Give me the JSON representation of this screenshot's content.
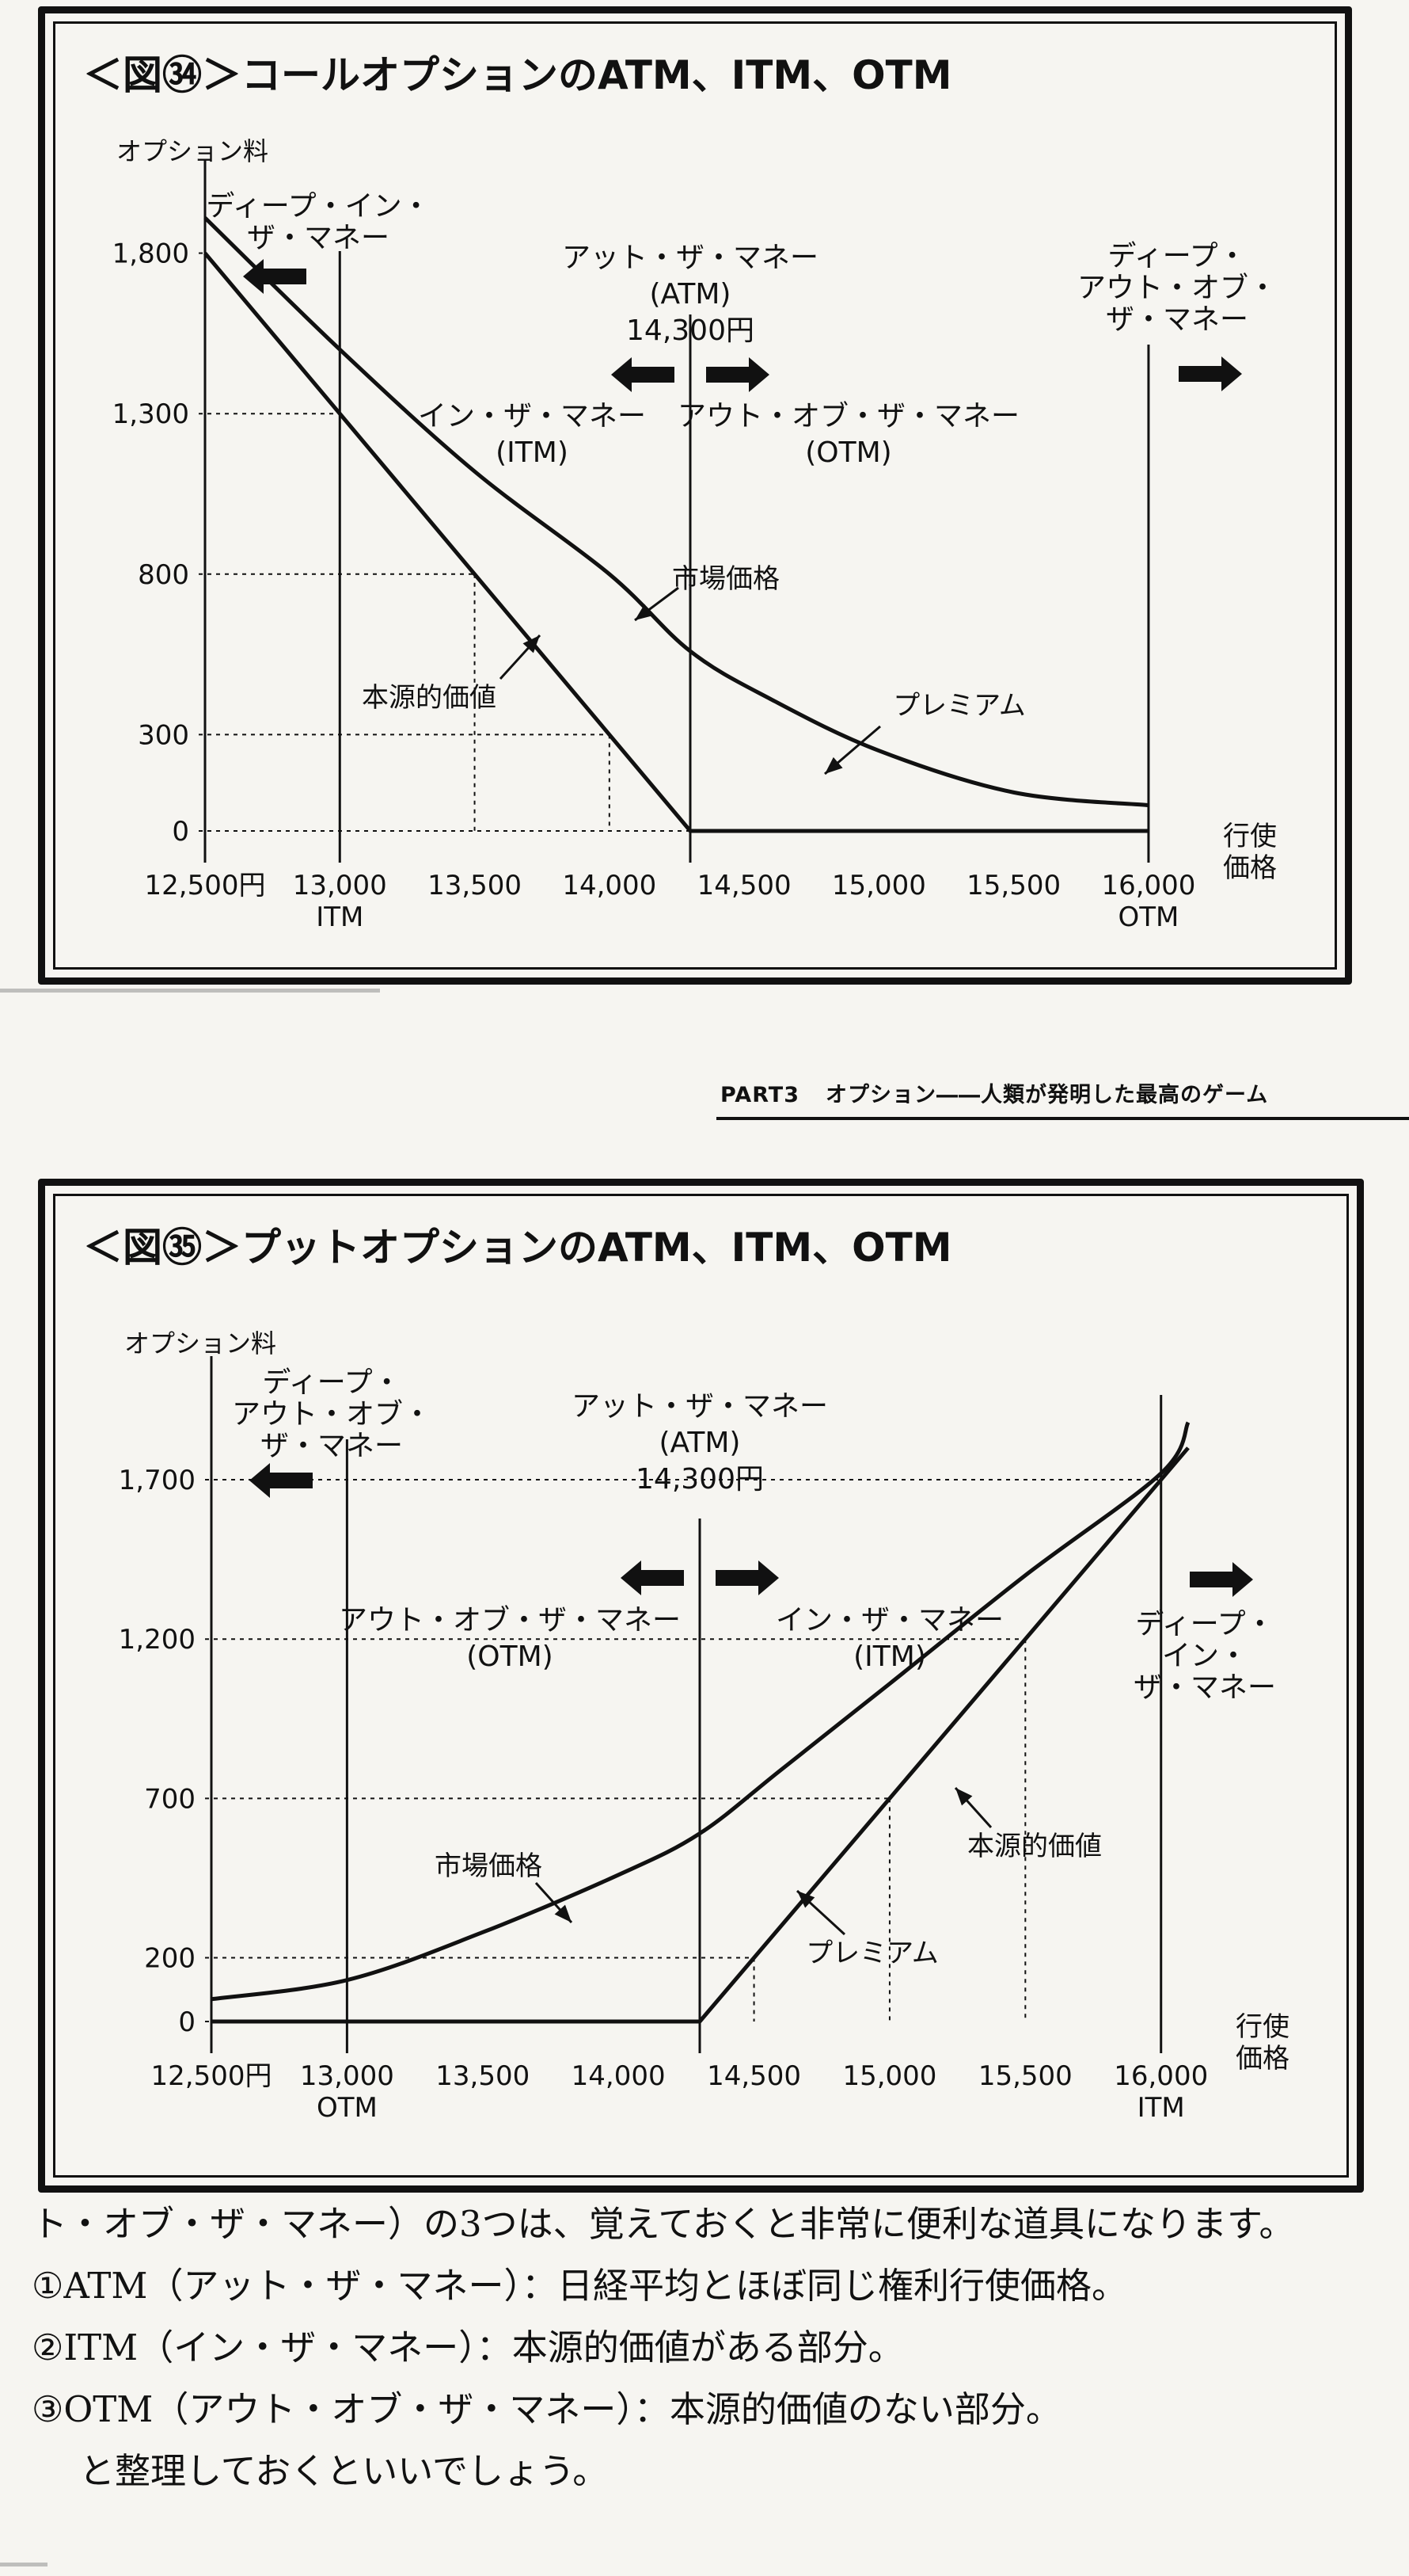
{
  "page_header": {
    "part": "PART3",
    "title": "オプション――人類が発明した最高のゲーム"
  },
  "body_text": [
    "ト・オブ・ザ・マネー）の3つは、覚えておくと非常に便利な道具になります。",
    "①ATM（アット・ザ・マネー）：日経平均とほぼ同じ権利行使価格。",
    "②ITM（イン・ザ・マネー）：本源的価値がある部分。",
    "③OTM（アウト・オブ・ザ・マネー）：本源的価値のない部分。",
    "と整理しておくといいでしょう。"
  ],
  "chart_data": [
    {
      "type": "line",
      "title": "＜図㉞＞コールオプションのATM、ITM、OTM",
      "ylabel": "オプション料",
      "xlabel": [
        "行使",
        "価格"
      ],
      "x_tick_labels": [
        {
          "x": 12500,
          "lines": [
            "12,500円"
          ]
        },
        {
          "x": 13000,
          "lines": [
            "13,000",
            "ITM"
          ]
        },
        {
          "x": 13500,
          "lines": [
            "13,500"
          ]
        },
        {
          "x": 14000,
          "lines": [
            "14,000"
          ]
        },
        {
          "x": 14500,
          "lines": [
            "14,500"
          ]
        },
        {
          "x": 15000,
          "lines": [
            "15,000"
          ]
        },
        {
          "x": 15500,
          "lines": [
            "15,500"
          ]
        },
        {
          "x": 16000,
          "lines": [
            "16,000",
            "OTM"
          ]
        }
      ],
      "y_ticks": [
        {
          "y": 1800,
          "label": "1,800"
        },
        {
          "y": 1300,
          "label": "1,300"
        },
        {
          "y": 800,
          "label": "800"
        },
        {
          "y": 300,
          "label": "300"
        },
        {
          "y": 0,
          "label": "0"
        }
      ],
      "xlim": [
        12500,
        16100
      ],
      "ylim": [
        0,
        2100
      ],
      "series": [
        {
          "name": "市場価格",
          "x": [
            12500,
            13000,
            13500,
            14000,
            14300,
            14600,
            15000,
            15500,
            16000
          ],
          "y": [
            1910,
            1500,
            1120,
            800,
            560,
            410,
            250,
            120,
            80
          ]
        },
        {
          "name": "本源的価値",
          "x": [
            12500,
            14300,
            16000
          ],
          "y": [
            1800,
            0,
            0
          ]
        }
      ],
      "dotted_guides": [
        {
          "x": 13000,
          "y": 1300
        },
        {
          "x": 13500,
          "y": 800
        },
        {
          "x": 14000,
          "y": 300
        }
      ],
      "annotations": {
        "atm_lines": [
          "アット・ザ・マネー",
          "(ATM)",
          "14,300円"
        ],
        "atm_strike": 14300,
        "deep_left_lines": [
          "ディープ・イン・",
          "ザ・マネー"
        ],
        "deep_left_boundary": 13000,
        "deep_right_lines": [
          "ディープ・",
          "アウト・オブ・",
          "ザ・マネー"
        ],
        "deep_right_boundary": 16000,
        "left_zone_lines": [
          "イン・ザ・マネー",
          "(ITM)"
        ],
        "right_zone_lines": [
          "アウト・オブ・ザ・マネー",
          "(OTM)"
        ],
        "market_price_label": "市場価格",
        "intrinsic_label": "本源的価値",
        "premium_label": "プレミアム"
      }
    },
    {
      "type": "line",
      "title": "＜図㉟＞プットオプションのATM、ITM、OTM",
      "ylabel": "オプション料",
      "xlabel": [
        "行使",
        "価格"
      ],
      "x_tick_labels": [
        {
          "x": 12500,
          "lines": [
            "12,500円"
          ]
        },
        {
          "x": 13000,
          "lines": [
            "13,000",
            "OTM"
          ]
        },
        {
          "x": 13500,
          "lines": [
            "13,500"
          ]
        },
        {
          "x": 14000,
          "lines": [
            "14,000"
          ]
        },
        {
          "x": 14500,
          "lines": [
            "14,500"
          ]
        },
        {
          "x": 15000,
          "lines": [
            "15,000"
          ]
        },
        {
          "x": 15500,
          "lines": [
            "15,500"
          ]
        },
        {
          "x": 16000,
          "lines": [
            "16,000",
            "ITM"
          ]
        }
      ],
      "y_ticks": [
        {
          "y": 1700,
          "label": "1,700"
        },
        {
          "y": 1200,
          "label": "1,200"
        },
        {
          "y": 700,
          "label": "700"
        },
        {
          "y": 200,
          "label": "200"
        },
        {
          "y": 0,
          "label": "0"
        }
      ],
      "xlim": [
        12500,
        16100
      ],
      "ylim": [
        0,
        2150
      ],
      "series": [
        {
          "name": "市場価格",
          "x": [
            12500,
            13000,
            13500,
            14000,
            14300,
            14600,
            15000,
            15500,
            16000,
            16100
          ],
          "y": [
            70,
            130,
            280,
            460,
            590,
            790,
            1060,
            1400,
            1720,
            1880
          ]
        },
        {
          "name": "本源的価値",
          "x": [
            12500,
            14300,
            16100
          ],
          "y": [
            0,
            0,
            1800
          ]
        }
      ],
      "dotted_guides": [
        {
          "x": 14500,
          "y": 200
        },
        {
          "x": 15000,
          "y": 700
        },
        {
          "x": 15500,
          "y": 1200
        },
        {
          "x": 16000,
          "y": 1700
        }
      ],
      "annotations": {
        "atm_lines": [
          "アット・ザ・マネー",
          "(ATM)",
          "14,300円"
        ],
        "atm_strike": 14300,
        "deep_left_lines": [
          "ディープ・",
          "アウト・オブ・",
          "ザ・マネー"
        ],
        "deep_left_boundary": 13000,
        "deep_right_lines": [
          "ディープ・",
          "イン・",
          "ザ・マネー"
        ],
        "deep_right_boundary": 16000,
        "left_zone_lines": [
          "アウト・オブ・ザ・マネー",
          "(OTM)"
        ],
        "right_zone_lines": [
          "イン・ザ・マネー",
          "(ITM)"
        ],
        "market_price_label": "市場価格",
        "intrinsic_label": "本源的価値",
        "premium_label": "プレミアム"
      }
    }
  ]
}
